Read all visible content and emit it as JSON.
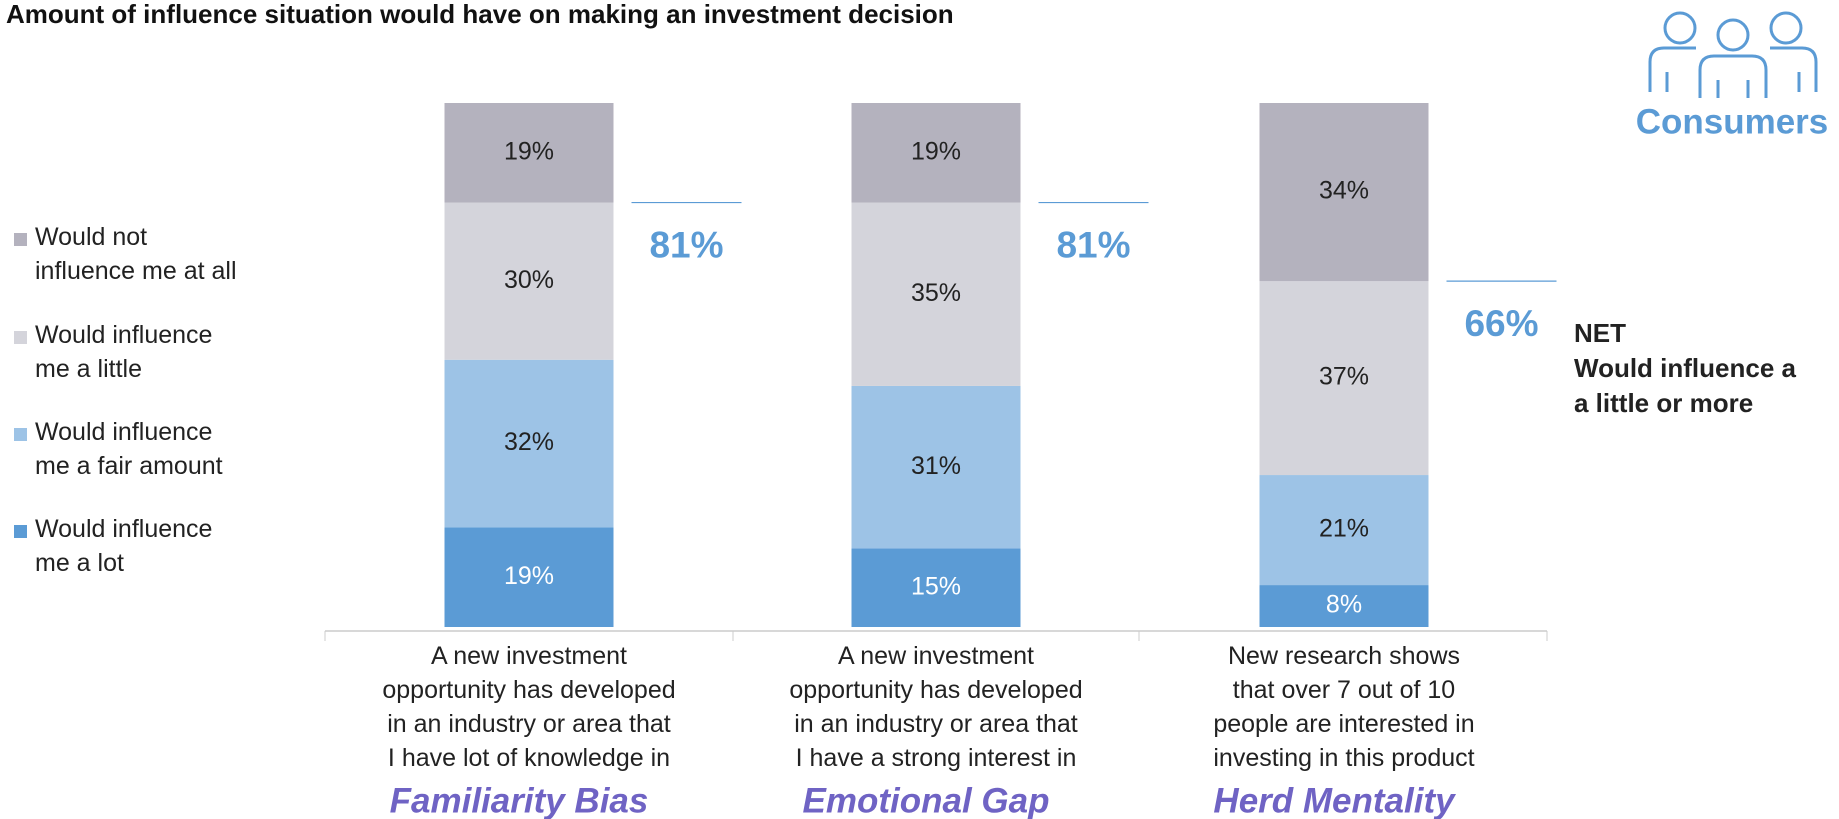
{
  "chart_data": {
    "type": "stacked_bar",
    "title": "Amount of influence situation would have on making an investment decision",
    "categories": [
      "A new investment\nopportunity has developed\nin an industry or area that\nI have lot of knowledge in",
      "A new investment\nopportunity has developed\nin an industry or area that\nI have a strong interest in",
      "New research shows\nthat over 7 out of 10\npeople are interested in\ninvesting in this product"
    ],
    "group_labels": [
      "Familiarity Bias",
      "Emotional Gap",
      "Herd Mentality"
    ],
    "series": [
      {
        "name": "Would influence\nme a lot",
        "color": "#5b9bd5",
        "values": [
          19,
          15,
          8
        ],
        "value_labels": [
          "19%",
          "15%",
          "8%"
        ]
      },
      {
        "name": "Would influence\nme a fair amount",
        "color": "#9dc3e6",
        "values": [
          32,
          31,
          21
        ],
        "value_labels": [
          "32%",
          "31%",
          "21%"
        ]
      },
      {
        "name": "Would influence\nme a little",
        "color": "#d4d4db",
        "values": [
          30,
          35,
          37
        ],
        "value_labels": [
          "30%",
          "35%",
          "37%"
        ]
      },
      {
        "name": "Would not\ninfluence me at all",
        "color": "#b4b2be",
        "values": [
          19,
          19,
          34
        ],
        "value_labels": [
          "19%",
          "19%",
          "34%"
        ]
      }
    ],
    "net": {
      "values": [
        81,
        81,
        66
      ],
      "value_labels": [
        "81%",
        "81%",
        "66%"
      ],
      "label": "NET\nWould influence a\na little or more",
      "color": "#5b9bd5"
    },
    "badge": "Consumers",
    "ylim": [
      0,
      100
    ]
  }
}
